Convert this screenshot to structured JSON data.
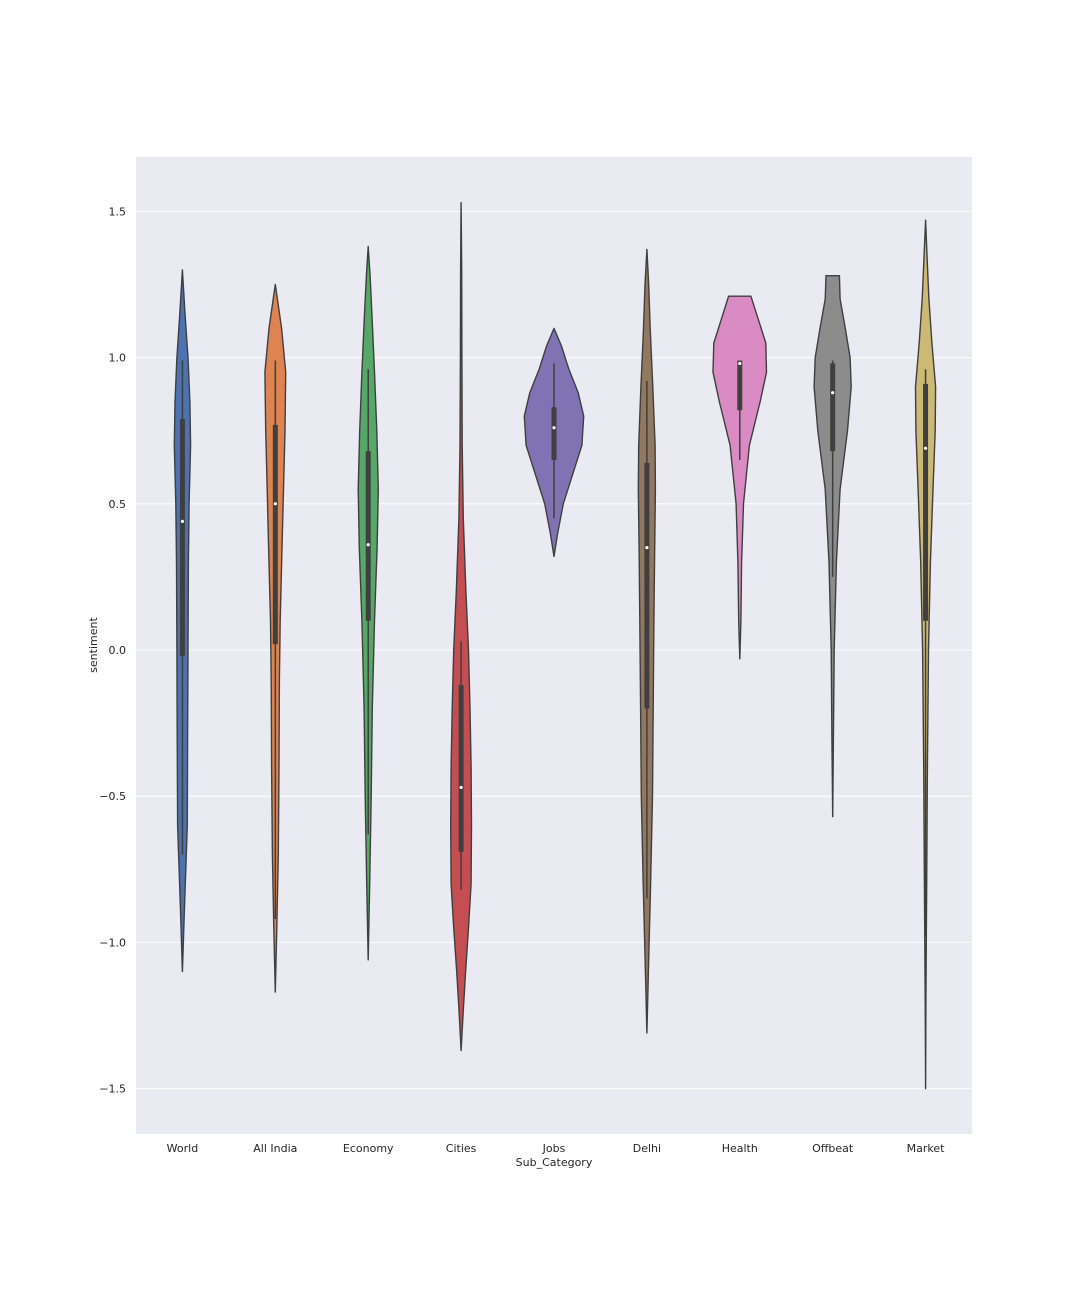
{
  "chart_data": {
    "type": "violin",
    "title": "",
    "xlabel": "Sub_Category",
    "ylabel": "sentiment",
    "ylim": [
      -1.65,
      1.65
    ],
    "yticks": [
      1.5,
      1.0,
      0.5,
      0.0,
      -0.5,
      -1.0,
      -1.5
    ],
    "ytick_labels": [
      "1.5",
      "1.0",
      "0.5",
      "0.0",
      "−0.5",
      "−1.0",
      "−1.5"
    ],
    "grid": true,
    "background": "#eaeaf2",
    "categories": [
      "World",
      "All India",
      "Economy",
      "Cities",
      "Jobs",
      "Delhi",
      "Health",
      "Offbeat",
      "Market"
    ],
    "colors": [
      "#4c72b0",
      "#dd8452",
      "#55a868",
      "#c44e52",
      "#8172b3",
      "#937860",
      "#da8bc3",
      "#8c8c8c",
      "#ccb974"
    ],
    "violins": [
      {
        "category": "World",
        "min": -1.1,
        "max": 1.3,
        "q1": -0.02,
        "median": 0.44,
        "q3": 0.79,
        "whisker_low": -0.7,
        "whisker_high": 0.99,
        "profile": [
          [
            -1.1,
            0.0
          ],
          [
            -0.9,
            0.05
          ],
          [
            -0.6,
            0.13
          ],
          [
            -0.3,
            0.14
          ],
          [
            0.0,
            0.15
          ],
          [
            0.3,
            0.16
          ],
          [
            0.5,
            0.18
          ],
          [
            0.7,
            0.22
          ],
          [
            0.85,
            0.2
          ],
          [
            1.0,
            0.15
          ],
          [
            1.15,
            0.07
          ],
          [
            1.3,
            0.0
          ]
        ]
      },
      {
        "category": "All India",
        "min": -1.17,
        "max": 1.25,
        "q1": 0.02,
        "median": 0.5,
        "q3": 0.77,
        "whisker_low": -0.92,
        "whisker_high": 0.99,
        "profile": [
          [
            -1.17,
            0.0
          ],
          [
            -0.95,
            0.04
          ],
          [
            -0.7,
            0.08
          ],
          [
            -0.4,
            0.1
          ],
          [
            -0.1,
            0.11
          ],
          [
            0.1,
            0.13
          ],
          [
            0.35,
            0.18
          ],
          [
            0.55,
            0.22
          ],
          [
            0.75,
            0.26
          ],
          [
            0.95,
            0.28
          ],
          [
            1.1,
            0.17
          ],
          [
            1.25,
            0.0
          ]
        ]
      },
      {
        "category": "Economy",
        "min": -1.06,
        "max": 1.38,
        "q1": 0.1,
        "median": 0.36,
        "q3": 0.68,
        "whisker_low": -0.63,
        "whisker_high": 0.96,
        "profile": [
          [
            -1.06,
            0.0
          ],
          [
            -0.8,
            0.04
          ],
          [
            -0.5,
            0.08
          ],
          [
            -0.2,
            0.11
          ],
          [
            0.1,
            0.17
          ],
          [
            0.35,
            0.24
          ],
          [
            0.55,
            0.27
          ],
          [
            0.75,
            0.23
          ],
          [
            0.95,
            0.17
          ],
          [
            1.15,
            0.1
          ],
          [
            1.28,
            0.05
          ],
          [
            1.38,
            0.0
          ]
        ]
      },
      {
        "category": "Cities",
        "min": -1.37,
        "max": 1.53,
        "q1": -0.69,
        "median": -0.47,
        "q3": -0.12,
        "whisker_low": -0.82,
        "whisker_high": 0.03,
        "profile": [
          [
            -1.37,
            0.0
          ],
          [
            -1.25,
            0.05
          ],
          [
            -1.1,
            0.12
          ],
          [
            -0.95,
            0.2
          ],
          [
            -0.8,
            0.27
          ],
          [
            -0.6,
            0.28
          ],
          [
            -0.4,
            0.27
          ],
          [
            -0.2,
            0.24
          ],
          [
            0.0,
            0.2
          ],
          [
            0.2,
            0.13
          ],
          [
            0.45,
            0.06
          ],
          [
            0.7,
            0.03
          ],
          [
            1.0,
            0.02
          ],
          [
            1.3,
            0.015
          ],
          [
            1.53,
            0.0
          ]
        ]
      },
      {
        "category": "Jobs",
        "min": 0.32,
        "max": 1.1,
        "q1": 0.65,
        "median": 0.76,
        "q3": 0.83,
        "whisker_low": 0.45,
        "whisker_high": 0.98,
        "profile": [
          [
            0.32,
            0.0
          ],
          [
            0.4,
            0.1
          ],
          [
            0.5,
            0.25
          ],
          [
            0.6,
            0.5
          ],
          [
            0.7,
            0.75
          ],
          [
            0.8,
            0.8
          ],
          [
            0.88,
            0.65
          ],
          [
            0.96,
            0.4
          ],
          [
            1.04,
            0.2
          ],
          [
            1.1,
            0.0
          ]
        ]
      },
      {
        "category": "Delhi",
        "min": -1.31,
        "max": 1.37,
        "q1": -0.2,
        "median": 0.35,
        "q3": 0.64,
        "whisker_low": -0.85,
        "whisker_high": 0.92,
        "profile": [
          [
            -1.31,
            0.0
          ],
          [
            -1.1,
            0.04
          ],
          [
            -0.8,
            0.1
          ],
          [
            -0.5,
            0.15
          ],
          [
            -0.2,
            0.17
          ],
          [
            0.1,
            0.19
          ],
          [
            0.35,
            0.21
          ],
          [
            0.55,
            0.23
          ],
          [
            0.7,
            0.22
          ],
          [
            0.9,
            0.16
          ],
          [
            1.1,
            0.09
          ],
          [
            1.25,
            0.05
          ],
          [
            1.37,
            0.0
          ]
        ]
      },
      {
        "category": "Health",
        "min": -0.03,
        "max": 1.21,
        "q1": 0.82,
        "median": 0.98,
        "q3": 0.99,
        "whisker_low": 0.65,
        "whisker_high": 0.99,
        "profile": [
          [
            -0.03,
            0.0
          ],
          [
            0.1,
            0.03
          ],
          [
            0.3,
            0.05
          ],
          [
            0.5,
            0.1
          ],
          [
            0.7,
            0.26
          ],
          [
            0.85,
            0.55
          ],
          [
            0.95,
            0.72
          ],
          [
            1.05,
            0.7
          ],
          [
            1.15,
            0.45
          ],
          [
            1.21,
            0.3
          ]
        ]
      },
      {
        "category": "Offbeat",
        "min": -0.57,
        "max": 1.28,
        "q1": 0.68,
        "median": 0.88,
        "q3": 0.98,
        "whisker_low": 0.25,
        "whisker_high": 0.99,
        "profile": [
          [
            -0.57,
            0.0
          ],
          [
            -0.3,
            0.02
          ],
          [
            0.0,
            0.04
          ],
          [
            0.3,
            0.1
          ],
          [
            0.55,
            0.2
          ],
          [
            0.75,
            0.4
          ],
          [
            0.9,
            0.5
          ],
          [
            1.0,
            0.47
          ],
          [
            1.1,
            0.34
          ],
          [
            1.2,
            0.2
          ],
          [
            1.28,
            0.18
          ]
        ]
      },
      {
        "category": "Market",
        "min": -1.5,
        "max": 1.47,
        "q1": 0.1,
        "median": 0.69,
        "q3": 0.91,
        "whisker_low": -0.98,
        "whisker_high": 0.96,
        "profile": [
          [
            -1.5,
            0.0
          ],
          [
            -1.2,
            0.01
          ],
          [
            -0.8,
            0.03
          ],
          [
            -0.4,
            0.05
          ],
          [
            0.0,
            0.08
          ],
          [
            0.3,
            0.13
          ],
          [
            0.55,
            0.2
          ],
          [
            0.75,
            0.26
          ],
          [
            0.9,
            0.27
          ],
          [
            1.05,
            0.17
          ],
          [
            1.2,
            0.09
          ],
          [
            1.35,
            0.04
          ],
          [
            1.47,
            0.0
          ]
        ]
      }
    ]
  }
}
